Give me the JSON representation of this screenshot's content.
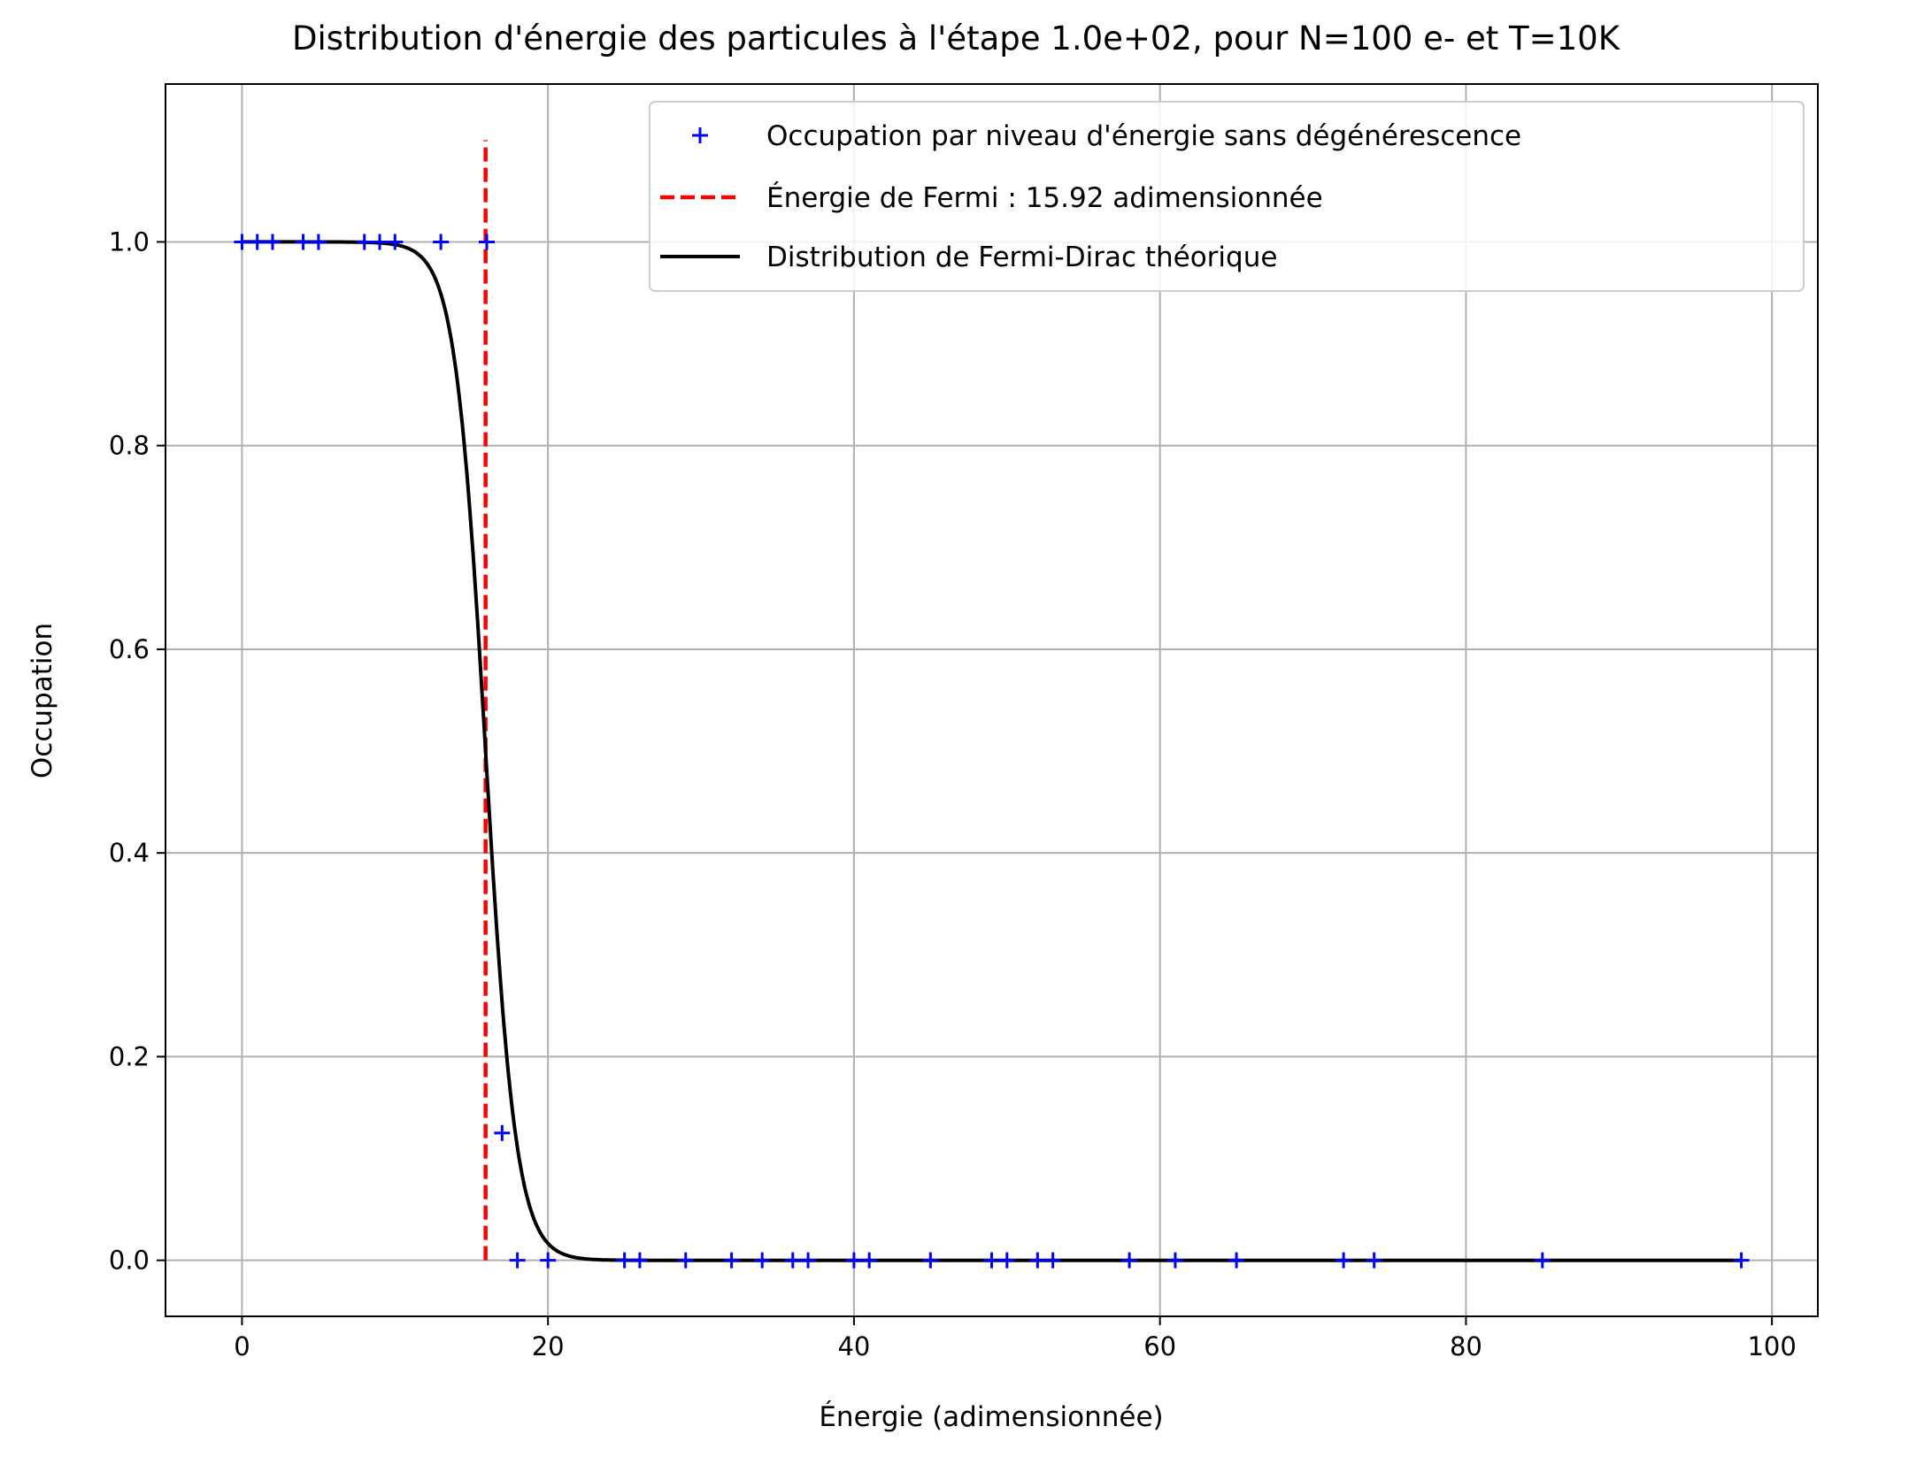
{
  "chart_data": {
    "type": "scatter",
    "title": "Distribution d'énergie des particules à l'étape 1.0e+02, pour N=100 e- et T=10K",
    "xlabel": "Énergie (adimensionnée)",
    "ylabel": "Occupation",
    "xlim": [
      -5,
      103
    ],
    "ylim": [
      -0.055,
      1.155
    ],
    "xticks": [
      0,
      20,
      40,
      60,
      80,
      100
    ],
    "yticks": [
      0.0,
      0.2,
      0.4,
      0.6,
      0.8,
      1.0
    ],
    "xtick_labels": [
      "0",
      "20",
      "40",
      "60",
      "80",
      "100"
    ],
    "ytick_labels": [
      "0.0",
      "0.2",
      "0.4",
      "0.6",
      "0.8",
      "1.0"
    ],
    "grid": true,
    "legend_position": "top-right",
    "fermi_energy": 15.92,
    "fermi_line_ymax": 1.1,
    "temperature_scale": 1.0,
    "series": [
      {
        "name": "Occupation par niveau d'énergie sans dégénérescence",
        "kind": "markers",
        "marker": "+",
        "color": "#0000ff",
        "x": [
          0,
          1,
          2,
          4,
          5,
          8,
          9,
          10,
          13,
          16,
          17,
          18,
          20,
          25,
          26,
          29,
          32,
          34,
          36,
          37,
          40,
          41,
          45,
          49,
          50,
          52,
          53,
          58,
          61,
          65,
          72,
          74,
          85,
          98
        ],
        "y": [
          1,
          1,
          1,
          1,
          1,
          1,
          1,
          1,
          1,
          1,
          0.125,
          0,
          0,
          0,
          0,
          0,
          0,
          0,
          0,
          0,
          0,
          0,
          0,
          0,
          0,
          0,
          0,
          0,
          0,
          0,
          0,
          0,
          0,
          0
        ]
      },
      {
        "name": "Énergie de Fermi : 15.92 adimensionnée",
        "kind": "vline",
        "style": "dashed",
        "color": "#ff0000"
      },
      {
        "name": "Distribution de Fermi-Dirac théorique",
        "kind": "curve",
        "color": "#000000",
        "x_range": [
          0,
          98
        ]
      }
    ]
  }
}
